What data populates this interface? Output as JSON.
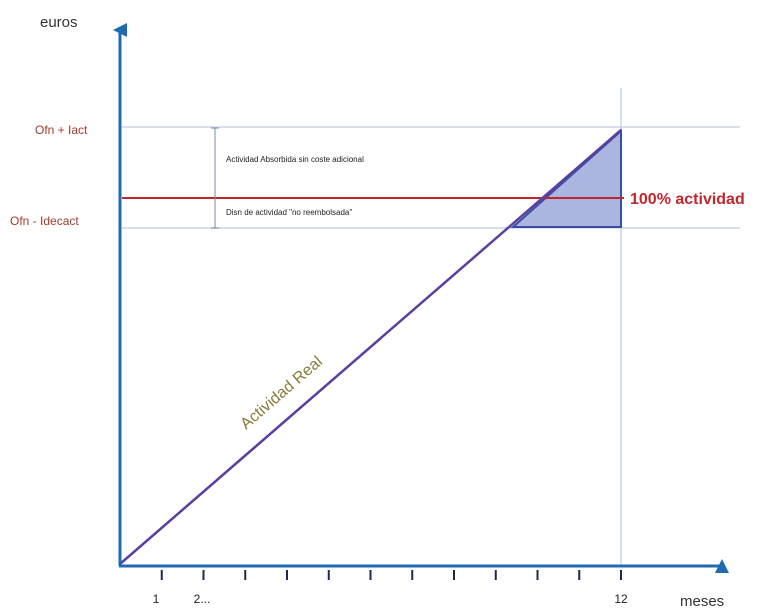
{
  "axes": {
    "y_label": "euros",
    "x_label": "meses",
    "y_levels": [
      "Ofn + Iact",
      "Ofn - Idecact"
    ]
  },
  "reference_line_label": "100% actividad",
  "bracket": {
    "upper_text": "Actividad Absorbida sin coste adicional",
    "lower_text": "Disn de actividad \"no reembolsada\""
  },
  "activity_line_label": "Actividad Real",
  "x_ticks": {
    "labels": [
      "1",
      "2...",
      "12"
    ],
    "count": 12
  },
  "colors": {
    "axis": "#1f6bb0",
    "reference_line": "#c0272d",
    "activity_line": "#5a3fa0",
    "level_label": "#a23b2b",
    "activity_label": "#8a7a3a",
    "triangle_fill": "#aab6e0",
    "guide_line": "#c9d6e6"
  }
}
